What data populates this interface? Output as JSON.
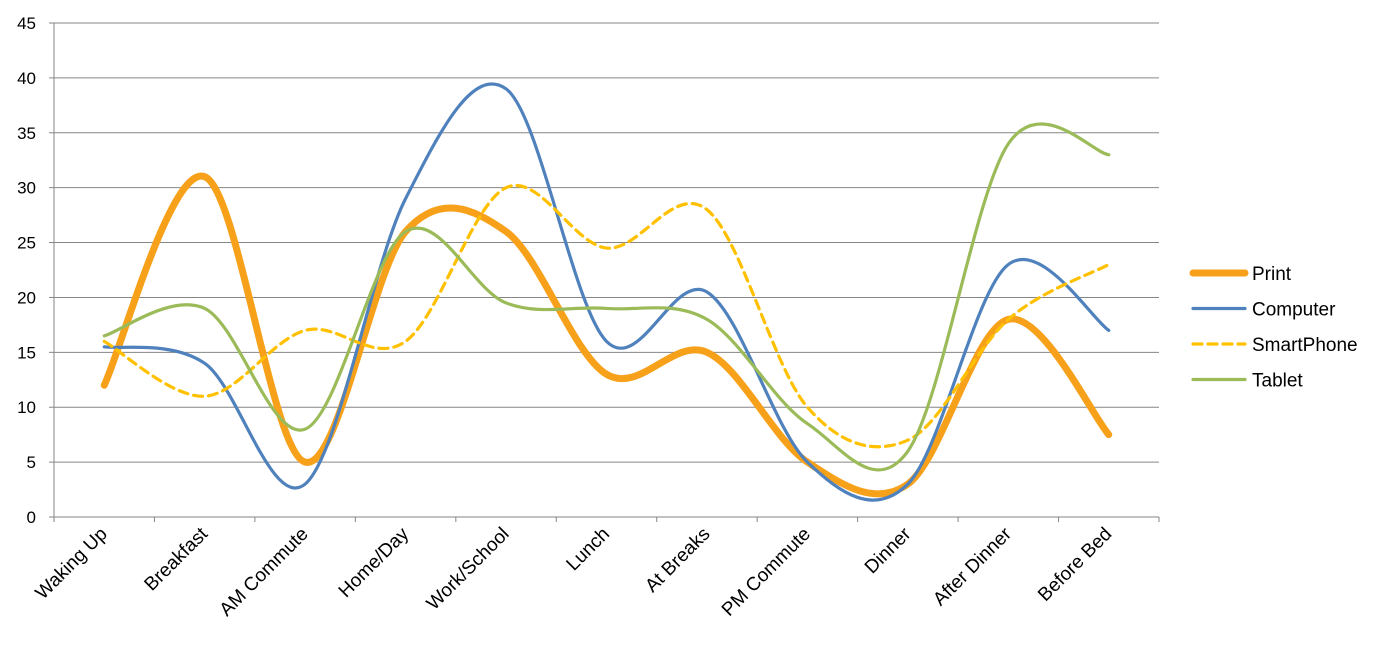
{
  "chart_data": {
    "type": "line",
    "smoothed": true,
    "categories": [
      "Waking Up",
      "Breakfast",
      "AM Commute",
      "Home/Day",
      "Work/School",
      "Lunch",
      "At Breaks",
      "PM Commute",
      "Dinner",
      "After Dinner",
      "Before Bed"
    ],
    "series": [
      {
        "name": "Print",
        "color": "#F7A11A",
        "dash": "solid",
        "weight": "thick",
        "values": [
          12,
          31,
          5,
          26,
          26,
          13,
          15,
          5,
          3,
          18,
          7.5
        ]
      },
      {
        "name": "Computer",
        "color": "#4F81BD",
        "dash": "solid",
        "weight": "normal",
        "values": [
          15.5,
          14,
          3,
          29,
          39,
          16,
          20.5,
          5,
          3,
          23,
          17
        ]
      },
      {
        "name": "SmartPhone",
        "color": "#FFC000",
        "dash": "dashed",
        "weight": "normal",
        "values": [
          16,
          11,
          17,
          16,
          30,
          24.5,
          28,
          10,
          7,
          18,
          23
        ]
      },
      {
        "name": "Tablet",
        "color": "#9BBB59",
        "dash": "solid",
        "weight": "normal",
        "values": [
          16.5,
          19,
          8,
          26,
          19.5,
          19,
          18,
          8.5,
          6,
          34,
          33
        ]
      }
    ],
    "ylim": [
      0,
      45
    ],
    "yticks": [
      "0",
      "5",
      "10",
      "15",
      "20",
      "25",
      "30",
      "35",
      "40",
      "45"
    ],
    "grid": true,
    "legend": "right",
    "axis_color": "#868686",
    "grid_color": "#868686"
  }
}
